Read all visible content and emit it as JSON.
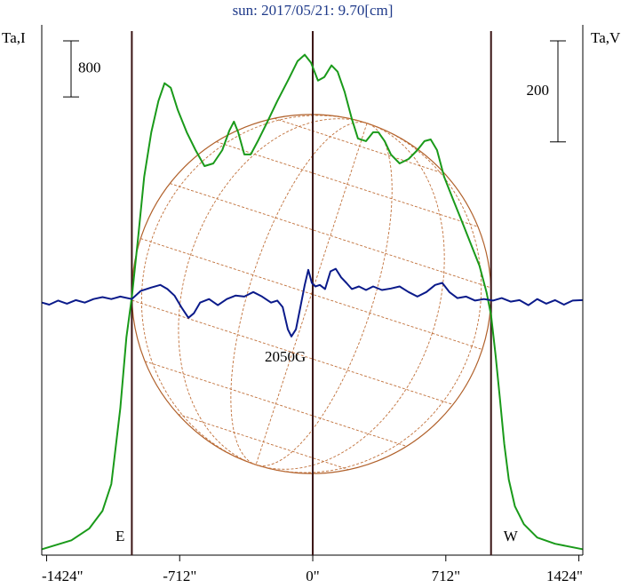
{
  "chart_data": {
    "type": "line",
    "title": "sun: 2017/05/21: 9.70[cm]",
    "ylabel": "Ta,I",
    "y2label": "Ta,V",
    "xlim": [
      -1450,
      1445
    ],
    "xticks": [
      {
        "value": -1424,
        "label": "-1424\""
      },
      {
        "value": -712,
        "label": "-712\""
      },
      {
        "value": 0,
        "label": "0\""
      },
      {
        "value": 712,
        "label": "712\""
      },
      {
        "value": 1424,
        "label": "1424\""
      }
    ],
    "ylim": [
      -60,
      7500
    ],
    "y2lim": [
      -500,
      550
    ],
    "scale_bars": [
      {
        "value": 800,
        "axis": "y"
      },
      {
        "value": 200,
        "axis": "y2"
      }
    ],
    "vertical_lines": [
      {
        "x": -968,
        "label": "E"
      },
      {
        "x": 0
      },
      {
        "x": 954,
        "label": "W"
      }
    ],
    "annotation": "2050G",
    "series": [
      {
        "color": "#1a9a1a",
        "x": [
          -1448,
          -1291,
          -1196,
          -1125,
          -1078,
          -1030,
          -997,
          -968,
          -935,
          -902,
          -864,
          -826,
          -793,
          -760,
          -722,
          -674,
          -627,
          -579,
          -532,
          -484,
          -446,
          -422,
          -399,
          -366,
          -332,
          -294,
          -247,
          -190,
          -128,
          -81,
          -43,
          -9,
          28,
          62,
          100,
          133,
          171,
          209,
          242,
          285,
          323,
          351,
          385,
          418,
          465,
          513,
          560,
          598,
          631,
          665,
          703,
          750,
          798,
          845,
          892,
          930,
          954,
          978,
          1002,
          1025,
          1049,
          1082,
          1130,
          1201,
          1296,
          1443
        ],
        "values": [
          25,
          152,
          318,
          572,
          953,
          2032,
          3048,
          3620,
          4445,
          5334,
          5969,
          6414,
          6668,
          6604,
          6287,
          5969,
          5715,
          5486,
          5525,
          5715,
          5994,
          6121,
          5969,
          5652,
          5652,
          5842,
          6096,
          6414,
          6731,
          6985,
          7074,
          6960,
          6706,
          6757,
          6922,
          6833,
          6541,
          6160,
          5880,
          5842,
          5969,
          5969,
          5842,
          5652,
          5525,
          5588,
          5715,
          5842,
          5867,
          5715,
          5334,
          5017,
          4699,
          4382,
          4064,
          3683,
          3366,
          2794,
          2159,
          1524,
          1016,
          635,
          381,
          191,
          102,
          25
        ]
      },
      {
        "color": "#0a1a8a",
        "axis": "y2",
        "x": [
          -1448,
          -1410,
          -1362,
          -1315,
          -1268,
          -1220,
          -1173,
          -1125,
          -1078,
          -1030,
          -968,
          -921,
          -864,
          -816,
          -778,
          -740,
          -703,
          -665,
          -636,
          -603,
          -555,
          -508,
          -460,
          -413,
          -366,
          -318,
          -271,
          -223,
          -190,
          -161,
          -133,
          -114,
          -90,
          -66,
          -43,
          -24,
          -5,
          14,
          38,
          66,
          95,
          123,
          152,
          180,
          209,
          247,
          285,
          323,
          370,
          418,
          465,
          513,
          560,
          608,
          655,
          693,
          731,
          774,
          821,
          869,
          916,
          964,
          1011,
          1059,
          1106,
          1154,
          1201,
          1249,
          1296,
          1344,
          1391,
          1443
        ],
        "values": [
          0,
          -4,
          4,
          -2,
          5,
          0,
          7,
          11,
          7,
          12,
          7,
          23,
          30,
          35,
          27,
          14,
          -9,
          -30,
          -21,
          0,
          7,
          -5,
          7,
          14,
          12,
          21,
          12,
          0,
          4,
          -9,
          -53,
          -67,
          -53,
          -9,
          35,
          65,
          39,
          32,
          35,
          27,
          62,
          67,
          50,
          39,
          27,
          32,
          25,
          32,
          25,
          28,
          32,
          21,
          12,
          21,
          35,
          39,
          21,
          9,
          12,
          4,
          7,
          4,
          9,
          2,
          5,
          -5,
          7,
          -2,
          5,
          -4,
          4,
          5
        ]
      }
    ]
  }
}
